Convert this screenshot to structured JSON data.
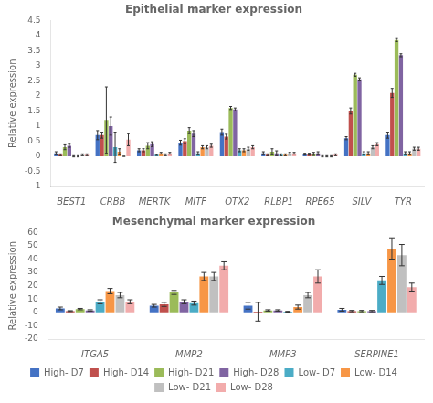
{
  "chart_data": [
    {
      "type": "bar",
      "title": "Epithelial marker expression",
      "ylabel": "Relative expression",
      "categories": [
        "BEST1",
        "CRBB",
        "MERTK",
        "MITF",
        "OTX2",
        "RLBP1",
        "RPE65",
        "SILV",
        "TYR"
      ],
      "series": [
        {
          "name": "High- D7",
          "color": "#4472C4",
          "values": [
            0.1,
            0.7,
            0.2,
            0.45,
            0.8,
            0.1,
            0.07,
            0.6,
            0.7
          ],
          "errors": [
            0.05,
            0.15,
            0.05,
            0.08,
            0.1,
            0.05,
            0.03,
            0.05,
            0.1
          ]
        },
        {
          "name": "High- D14",
          "color": "#C0504D",
          "values": [
            0.05,
            0.7,
            0.2,
            0.5,
            0.65,
            0.05,
            0.07,
            1.5,
            2.1
          ],
          "errors": [
            0.03,
            0.1,
            0.05,
            0.08,
            0.08,
            0.03,
            0.03,
            0.1,
            0.15
          ]
        },
        {
          "name": "High- D21",
          "color": "#9BBB59",
          "values": [
            0.3,
            1.2,
            0.35,
            0.85,
            1.6,
            0.15,
            0.08,
            2.7,
            3.85
          ],
          "errors": [
            0.08,
            1.1,
            0.1,
            0.1,
            0.05,
            0.1,
            0.05,
            0.05,
            0.05
          ]
        },
        {
          "name": "High- D28",
          "color": "#8064A2",
          "values": [
            0.35,
            1.0,
            0.4,
            0.75,
            1.55,
            0.1,
            0.1,
            2.55,
            3.35
          ],
          "errors": [
            0.05,
            0.3,
            0.08,
            0.1,
            0.05,
            0.08,
            0.05,
            0.05,
            0.05
          ]
        },
        {
          "name": "Low- D7",
          "color": "#4BACC6",
          "values": [
            0.0,
            0.3,
            0.05,
            0.1,
            0.2,
            0.05,
            0.0,
            0.1,
            0.1
          ],
          "errors": [
            0.02,
            0.5,
            0.02,
            0.05,
            0.05,
            0.03,
            0.02,
            0.05,
            0.05
          ]
        },
        {
          "name": "Low- D14",
          "color": "#F79646",
          "values": [
            0.0,
            0.15,
            0.1,
            0.3,
            0.2,
            0.05,
            0.0,
            0.1,
            0.1
          ],
          "errors": [
            0.02,
            0.1,
            0.03,
            0.05,
            0.05,
            0.03,
            0.02,
            0.05,
            0.05
          ]
        },
        {
          "name": "Low- D21",
          "color": "#C0C0C0",
          "values": [
            0.05,
            0.0,
            0.05,
            0.3,
            0.25,
            0.1,
            0.0,
            0.3,
            0.25
          ],
          "errors": [
            0.03,
            0.0,
            0.03,
            0.05,
            0.05,
            0.03,
            0.02,
            0.05,
            0.05
          ]
        },
        {
          "name": "Low- D28",
          "color": "#F2ACAC",
          "values": [
            0.05,
            0.55,
            0.1,
            0.35,
            0.3,
            0.1,
            0.05,
            0.4,
            0.25
          ],
          "errors": [
            0.03,
            0.2,
            0.03,
            0.05,
            0.05,
            0.03,
            0.03,
            0.05,
            0.05
          ]
        }
      ],
      "ylim": [
        -1,
        4.5
      ],
      "yticks": [
        -1,
        -0.5,
        0,
        0.5,
        1,
        1.5,
        2,
        2.5,
        3,
        3.5,
        4,
        4.5
      ],
      "grid": false
    },
    {
      "type": "bar",
      "title": "Mesenchymal marker expression",
      "ylabel": "Relative expression",
      "categories": [
        "ITGA5",
        "MMP2",
        "MMP3",
        "SERPINE1"
      ],
      "series": [
        {
          "name": "High- D7",
          "color": "#4472C4",
          "values": [
            3.0,
            5.0,
            5.0,
            2.0
          ],
          "errors": [
            1.0,
            1.0,
            2.5,
            1.0
          ]
        },
        {
          "name": "High- D14",
          "color": "#C0504D",
          "values": [
            1.0,
            6.0,
            0.5,
            1.0
          ],
          "errors": [
            0.3,
            1.5,
            7.0,
            0.5
          ]
        },
        {
          "name": "High- D21",
          "color": "#9BBB59",
          "values": [
            2.5,
            15.0,
            1.5,
            1.0
          ],
          "errors": [
            0.5,
            1.5,
            0.5,
            0.5
          ]
        },
        {
          "name": "High- D28",
          "color": "#8064A2",
          "values": [
            1.5,
            8.0,
            1.5,
            1.0
          ],
          "errors": [
            0.5,
            1.5,
            0.5,
            0.5
          ]
        },
        {
          "name": "Low- D7",
          "color": "#4BACC6",
          "values": [
            8.0,
            7.0,
            0.5,
            24.0
          ],
          "errors": [
            1.5,
            1.5,
            0.3,
            3.0
          ]
        },
        {
          "name": "Low- D14",
          "color": "#F79646",
          "values": [
            16.0,
            27.0,
            4.0,
            48.0
          ],
          "errors": [
            2.0,
            3.0,
            1.5,
            8.0
          ]
        },
        {
          "name": "Low- D21",
          "color": "#C0C0C0",
          "values": [
            13.0,
            27.0,
            13.0,
            43.0
          ],
          "errors": [
            2.0,
            3.0,
            2.0,
            8.0
          ]
        },
        {
          "name": "Low- D28",
          "color": "#F2ACAC",
          "values": [
            8.0,
            35.0,
            27.0,
            19.0
          ],
          "errors": [
            1.5,
            3.0,
            5.0,
            3.0
          ]
        }
      ],
      "ylim": [
        -20,
        60
      ],
      "yticks": [
        -20,
        -10,
        0,
        10,
        20,
        30,
        40,
        50,
        60
      ],
      "grid": false,
      "legend": "bottom"
    }
  ]
}
